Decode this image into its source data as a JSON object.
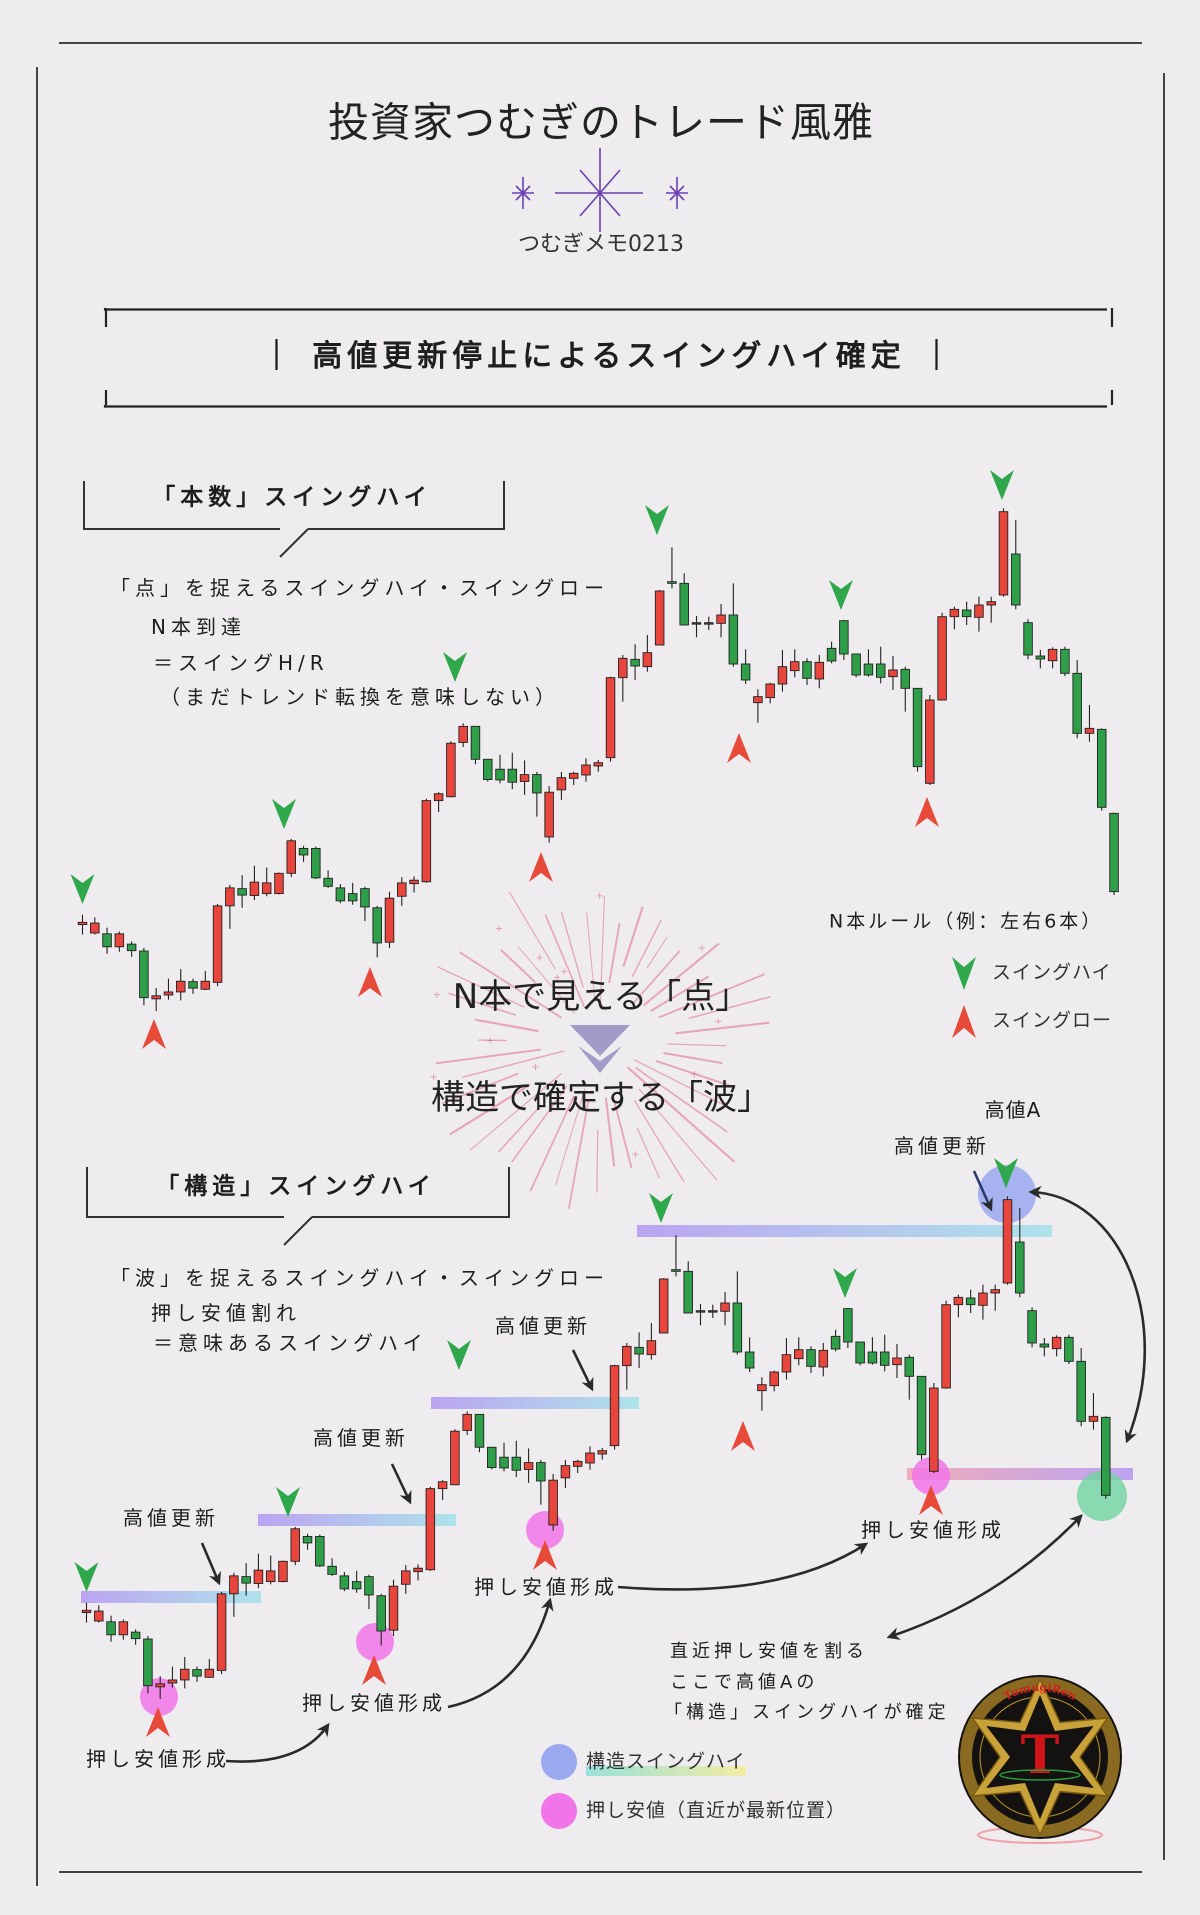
{
  "header": {
    "title": "投資家つむぎのトレード風雅",
    "memo": "つむぎメモ0213",
    "heading": "高値更新停止によるスイングハイ確定",
    "heading_bar": "｜"
  },
  "section_count": {
    "label": "「本数」スイングハイ",
    "lines": [
      "「点」を捉えるスイングハイ・スイングロー",
      "N本到達",
      "＝スイングH/R",
      "（まだトレンド転換を意味しない）"
    ]
  },
  "section_structure": {
    "label": "「構造」スイングハイ",
    "lines": [
      "「波」を捉えるスイングハイ・スイングロー",
      "押し安値割れ",
      "＝意味あるスイングハイ"
    ]
  },
  "top_legend": {
    "rule": "N本ルール（例：左右6本）",
    "items": [
      {
        "icon": "green-down-arrow-icon",
        "label": "スイングハイ"
      },
      {
        "icon": "red-up-arrow-icon",
        "label": "スイングロー"
      }
    ]
  },
  "transition": {
    "from": "N本で見える「点」",
    "to": "構造で確定する「波」",
    "icon": "double-chevron-down-icon"
  },
  "annotations": {
    "new_high": "高値更新",
    "high_a": "高値A",
    "pullback_low": "押し安値形成"
  },
  "conclusion": [
    "直近押し安値を割る",
    "ここで高値Aの",
    "「構造」スイングハイが確定"
  ],
  "bottom_legend": [
    {
      "icon": "blue-circle-icon",
      "label": "構造スイングハイ"
    },
    {
      "icon": "pink-circle-icon",
      "label": "押し安値（直近が最新位置）"
    }
  ],
  "logo": {
    "letter": "T",
    "ring_text": "TumugiRen"
  },
  "colors": {
    "background": "#eeecef",
    "bull_candle": "#e8453c",
    "bear_candle": "#2e9e48",
    "swing_high": "#2ea84a",
    "swing_low": "#e84a3a",
    "accent_purple": "#6a3fb0",
    "structure_high": "#9aa8f0",
    "pullback_low": "#f075e8",
    "break_point": "#6fd6a0"
  }
}
